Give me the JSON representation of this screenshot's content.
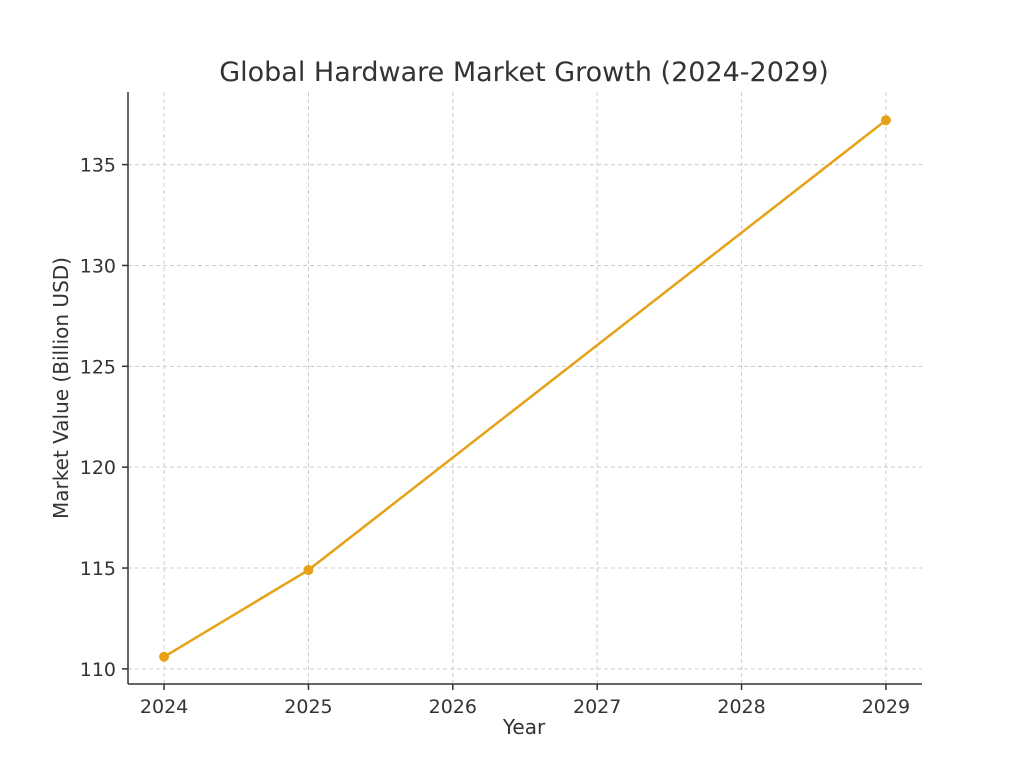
{
  "chart_data": {
    "type": "line",
    "title": "Global Hardware Market Growth (2024-2029)",
    "xlabel": "Year",
    "ylabel": "Market Value (Billion USD)",
    "x": [
      2024,
      2025,
      2026,
      2027,
      2028,
      2029
    ],
    "x_tick_labels": [
      "2024",
      "2025",
      "2026",
      "2027",
      "2028",
      "2029"
    ],
    "y_ticks": [
      110,
      115,
      120,
      125,
      130,
      135
    ],
    "y_tick_labels": [
      "110",
      "115",
      "120",
      "125",
      "130",
      "135"
    ],
    "xlim": [
      2023.75,
      2029.25
    ],
    "ylim": [
      109.25,
      138.6
    ],
    "grid": true,
    "series": [
      {
        "x": [
          2024,
          2025,
          2029
        ],
        "values": [
          110.6,
          114.9,
          137.2
        ],
        "color": "#e6a117",
        "marker": "circle"
      }
    ]
  }
}
